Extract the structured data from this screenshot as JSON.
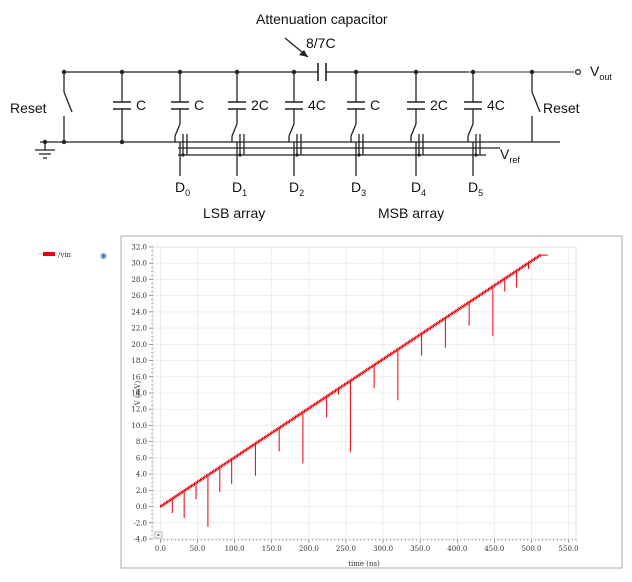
{
  "schematic": {
    "attenuation_label": "Attenuation capacitor",
    "attenuation_value": "8/7C",
    "vout_label": "V",
    "vout_sub": "out",
    "vref_label": "V",
    "vref_sub": "ref",
    "reset_left": "Reset",
    "reset_right": "Reset",
    "caps": [
      "C",
      "C",
      "2C",
      "4C",
      "C",
      "2C",
      "4C"
    ],
    "switches": [
      {
        "label": "D",
        "sub": "0"
      },
      {
        "label": "D",
        "sub": "1"
      },
      {
        "label": "D",
        "sub": "2"
      },
      {
        "label": "D",
        "sub": "3"
      },
      {
        "label": "D",
        "sub": "4"
      },
      {
        "label": "D",
        "sub": "5"
      }
    ],
    "lsb_label": "LSB array",
    "msb_label": "MSB array"
  },
  "chart_data": {
    "type": "line",
    "legend": [
      {
        "name": "/vin",
        "color": "#e8000b"
      }
    ],
    "xlabel": "time (ns)",
    "ylabel": "V (mV)",
    "xlim": [
      -10,
      560
    ],
    "ylim": [
      -4.0,
      32.0
    ],
    "x_ticks": [
      "0.0",
      "50.0",
      "100.0",
      "150.0",
      "200.0",
      "250.0",
      "300.0",
      "350.0",
      "400.0",
      "450.0",
      "500.0",
      "550.0"
    ],
    "y_ticks": [
      "-4.0",
      "-2.0",
      "0.0",
      "2.0",
      "4.0",
      "6.0",
      "8.0",
      "10.0",
      "12.0",
      "14.0",
      "16.0",
      "18.0",
      "20.0",
      "22.0",
      "24.0",
      "26.0",
      "28.0",
      "30.0",
      "32.0"
    ],
    "grid": true,
    "series": [
      {
        "name": "/vin",
        "ramp": {
          "x": [
            0,
            512
          ],
          "y": [
            0.0,
            31.0
          ]
        },
        "end_flat": {
          "x": [
            512,
            522
          ],
          "y": 31.0
        },
        "glitches": [
          {
            "x": 16,
            "y": -0.8
          },
          {
            "x": 32,
            "y": -1.4
          },
          {
            "x": 48,
            "y": 0.9
          },
          {
            "x": 64,
            "y": -2.5
          },
          {
            "x": 80,
            "y": 1.8
          },
          {
            "x": 96,
            "y": 2.8
          },
          {
            "x": 128,
            "y": 3.8
          },
          {
            "x": 160,
            "y": 6.8
          },
          {
            "x": 192,
            "y": 5.3
          },
          {
            "x": 224,
            "y": 11.0
          },
          {
            "x": 240,
            "y": 13.8
          },
          {
            "x": 256,
            "y": 6.7
          },
          {
            "x": 288,
            "y": 14.6
          },
          {
            "x": 320,
            "y": 13.1
          },
          {
            "x": 352,
            "y": 18.6
          },
          {
            "x": 384,
            "y": 19.6
          },
          {
            "x": 416,
            "y": 22.3
          },
          {
            "x": 448,
            "y": 21.0
          },
          {
            "x": 464,
            "y": 26.5
          },
          {
            "x": 480,
            "y": 27.0
          },
          {
            "x": 496,
            "y": 29.3
          }
        ]
      }
    ]
  }
}
